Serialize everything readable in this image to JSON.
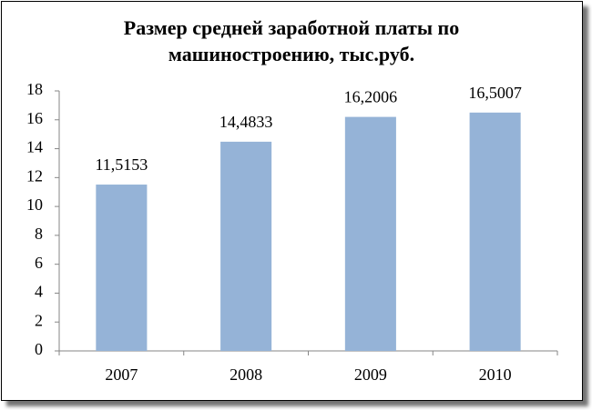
{
  "chart_data": {
    "type": "bar",
    "title": "Размер средней заработной платы по машиностроению, тыс.руб.",
    "categories": [
      "2007",
      "2008",
      "2009",
      "2010"
    ],
    "values": [
      11.5153,
      14.4833,
      16.2006,
      16.5007
    ],
    "value_labels": [
      "11,5153",
      "14,4833",
      "16,2006",
      "16,5007"
    ],
    "color": "#95b3d7",
    "ylim": [
      0,
      18
    ],
    "yticks": [
      0,
      2,
      4,
      6,
      8,
      10,
      12,
      14,
      16,
      18
    ],
    "grid": false
  }
}
